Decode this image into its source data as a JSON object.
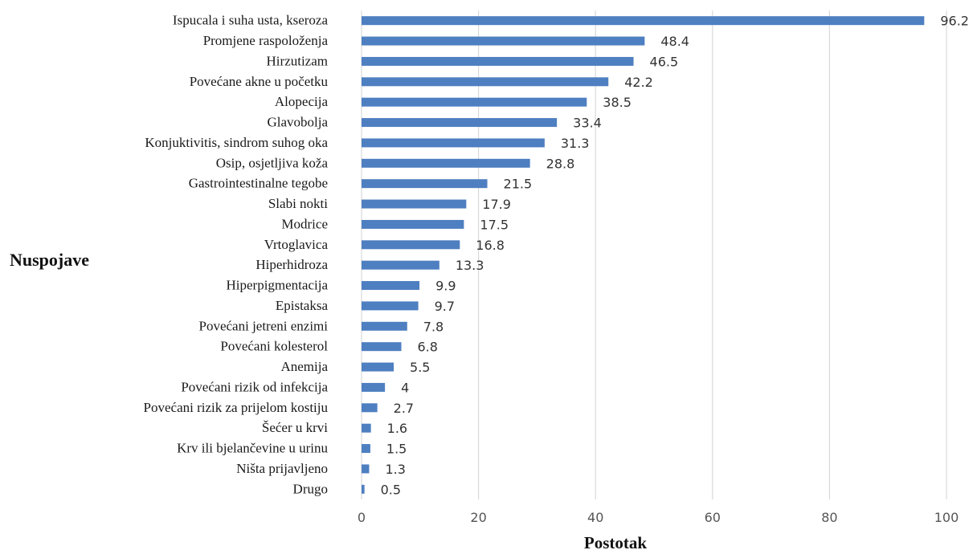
{
  "chart_data": {
    "type": "bar",
    "orientation": "horizontal",
    "categories": [
      "Ispucala i suha usta, kseroza",
      "Promjene raspoloženja",
      "Hirzutizam",
      "Povećane akne u početku",
      "Alopecija",
      "Glavobolja",
      "Konjuktivitis, sindrom suhog oka",
      "Osip, osjetljiva koža",
      "Gastrointestinalne tegobe",
      "Slabi nokti",
      "Modrice",
      "Vrtoglavica",
      "Hiperhidroza",
      "Hiperpigmentacija",
      "Epistaksa",
      "Povećani jetreni enzimi",
      "Povećani kolesterol",
      "Anemija",
      "Povećani rizik od infekcija",
      "Povećani rizik za prijelom kostiju",
      "Šećer u krvi",
      "Krv ili bjelančevine u urinu",
      "Ništa prijavljeno",
      "Drugo"
    ],
    "values": [
      96.2,
      48.4,
      46.5,
      42.2,
      38.5,
      33.4,
      31.3,
      28.8,
      21.5,
      17.9,
      17.5,
      16.8,
      13.3,
      9.9,
      9.7,
      7.8,
      6.8,
      5.5,
      4,
      2.7,
      1.6,
      1.5,
      1.3,
      0.5
    ],
    "value_labels": [
      "96.2",
      "48.4",
      "46.5",
      "42.2",
      "38.5",
      "33.4",
      "31.3",
      "28.8",
      "21.5",
      "17.9",
      "17.5",
      "16.8",
      "13.3",
      "9.9",
      "9.7",
      "7.8",
      "6.8",
      "5.5",
      "4",
      "2.7",
      "1.6",
      "1.5",
      "1.3",
      "0.5"
    ],
    "xlabel": "Postotak",
    "ylabel": "Nuspojave",
    "xlim": [
      0,
      100
    ],
    "xticks": [
      "0",
      "20",
      "40",
      "60",
      "80",
      "100"
    ],
    "grid": "vertical",
    "bar_color": "#4e7fc1",
    "grid_color": "#d9d9d9"
  }
}
